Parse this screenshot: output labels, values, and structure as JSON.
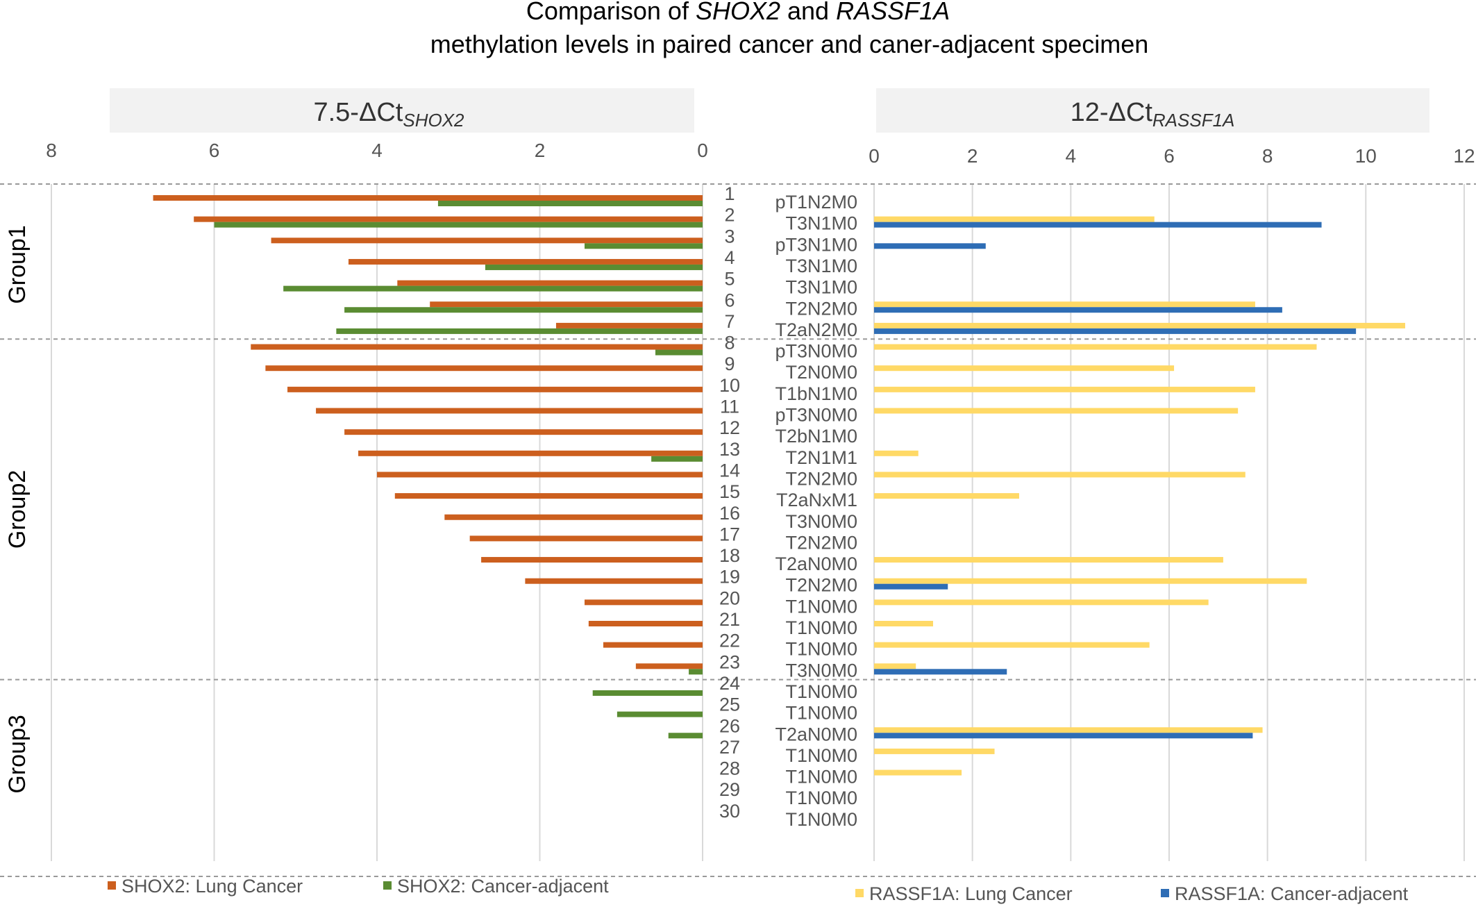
{
  "colors": {
    "shox2_lung": "#CC5F1E",
    "shox2_adjacent": "#5A8C32",
    "rassf1a_lung": "#FFD966",
    "rassf1a_adjacent": "#2E6DB5",
    "grid": "#D9D9D9",
    "panel_bg": "#F2F2F2",
    "text": "#000000",
    "muted_text": "#555555"
  },
  "chart_data": {
    "type": "bar",
    "orientation": "horizontal",
    "title": {
      "line1_parts": [
        "Comparison of ",
        "SHOX2",
        " and ",
        "RASSF1A"
      ],
      "line2": "methylation levels in paired cancer and caner-adjacent specimen"
    },
    "left_panel": {
      "header_main": "7.5-ΔCt",
      "header_sub": "SHOX2",
      "xlim": [
        0,
        8
      ],
      "ticks": [
        "8",
        "6",
        "4",
        "2",
        "0"
      ],
      "tick_values": [
        8,
        6,
        4,
        2,
        0
      ],
      "direction": "reversed",
      "series": [
        {
          "name": "SHOX2: Lung Cancer",
          "color_key": "shox2_lung",
          "values": [
            6.75,
            6.25,
            5.3,
            4.35,
            3.75,
            3.35,
            1.8,
            5.55,
            5.37,
            5.1,
            4.75,
            4.4,
            4.23,
            4.0,
            3.78,
            3.17,
            2.86,
            2.72,
            2.18,
            1.45,
            1.4,
            1.22,
            0.82,
            0,
            0,
            0,
            0,
            0,
            0,
            0
          ]
        },
        {
          "name": "SHOX2: Cancer-adjacent",
          "color_key": "shox2_adjacent",
          "values": [
            3.25,
            6.0,
            1.45,
            2.67,
            5.15,
            4.4,
            4.5,
            0.58,
            0,
            0,
            0,
            0,
            0.63,
            0,
            0,
            0,
            0,
            0,
            0,
            0,
            0,
            0,
            0.17,
            1.35,
            1.05,
            0.42,
            0,
            0,
            0,
            0
          ]
        }
      ]
    },
    "right_panel": {
      "header_main": "12-ΔCt",
      "header_sub": "RASSF1A",
      "xlim": [
        0,
        12
      ],
      "ticks": [
        "0",
        "2",
        "4",
        "6",
        "8",
        "10",
        "12"
      ],
      "tick_values": [
        0,
        2,
        4,
        6,
        8,
        10,
        12
      ],
      "direction": "normal",
      "series": [
        {
          "name": "RASSF1A: Lung Cancer",
          "color_key": "rassf1a_lung",
          "values": [
            0,
            5.7,
            0,
            0,
            0,
            7.75,
            10.8,
            9.0,
            6.1,
            7.75,
            7.4,
            0,
            0.9,
            7.55,
            2.95,
            0,
            0,
            7.1,
            8.8,
            6.8,
            1.2,
            5.6,
            0.85,
            0,
            0,
            7.9,
            2.45,
            1.78,
            0,
            0
          ]
        },
        {
          "name": "RASSF1A: Cancer-adjacent",
          "color_key": "rassf1a_adjacent",
          "values": [
            0,
            9.1,
            2.27,
            0,
            0,
            8.3,
            9.8,
            0,
            0,
            0,
            0,
            0,
            0,
            0,
            0,
            0,
            0,
            0,
            1.5,
            0,
            0,
            0,
            2.7,
            0,
            0,
            7.7,
            0,
            0,
            0,
            0
          ]
        }
      ]
    },
    "cases": [
      {
        "num": "1",
        "stage": "pT1N2M0"
      },
      {
        "num": "2",
        "stage": "T3N1M0"
      },
      {
        "num": "3",
        "stage": "pT3N1M0"
      },
      {
        "num": "4",
        "stage": "T3N1M0"
      },
      {
        "num": "5",
        "stage": "T3N1M0"
      },
      {
        "num": "6",
        "stage": "T2N2M0"
      },
      {
        "num": "7",
        "stage": "T2aN2M0"
      },
      {
        "num": "8",
        "stage": "pT3N0M0"
      },
      {
        "num": "9",
        "stage": "T2N0M0"
      },
      {
        "num": "10",
        "stage": "T1bN1M0"
      },
      {
        "num": "11",
        "stage": "pT3N0M0"
      },
      {
        "num": "12",
        "stage": "T2bN1M0"
      },
      {
        "num": "13",
        "stage": "T2N1M1"
      },
      {
        "num": "14",
        "stage": "T2N2M0"
      },
      {
        "num": "15",
        "stage": "T2aNxM1"
      },
      {
        "num": "16",
        "stage": "T3N0M0"
      },
      {
        "num": "17",
        "stage": "T2N2M0"
      },
      {
        "num": "18",
        "stage": "T2aN0M0"
      },
      {
        "num": "19",
        "stage": "T2N2M0"
      },
      {
        "num": "20",
        "stage": "T1N0M0"
      },
      {
        "num": "21",
        "stage": "T1N0M0"
      },
      {
        "num": "22",
        "stage": "T1N0M0"
      },
      {
        "num": "23",
        "stage": "T3N0M0"
      },
      {
        "num": "24",
        "stage": "T1N0M0"
      },
      {
        "num": "25",
        "stage": "T1N0M0"
      },
      {
        "num": "26",
        "stage": "T2aN0M0"
      },
      {
        "num": "27",
        "stage": "T1N0M0"
      },
      {
        "num": "28",
        "stage": "T1N0M0"
      },
      {
        "num": "29",
        "stage": "T1N0M0"
      },
      {
        "num": "30",
        "stage": "T1N0M0"
      }
    ],
    "groups": [
      {
        "label": "Group1",
        "first_case": 1,
        "last_case": 7
      },
      {
        "label": "Group2",
        "first_case": 8,
        "last_case": 23
      },
      {
        "label": "Group3",
        "first_case": 24,
        "last_case": 30
      }
    ],
    "legend": [
      {
        "label": "SHOX2:  Lung Cancer",
        "color_key": "shox2_lung"
      },
      {
        "label": "SHOX2:  Cancer-adjacent",
        "color_key": "shox2_adjacent"
      },
      {
        "label": "RASSF1A: Lung Cancer",
        "color_key": "rassf1a_lung"
      },
      {
        "label": "RASSF1A: Cancer-adjacent",
        "color_key": "rassf1a_adjacent"
      }
    ]
  }
}
